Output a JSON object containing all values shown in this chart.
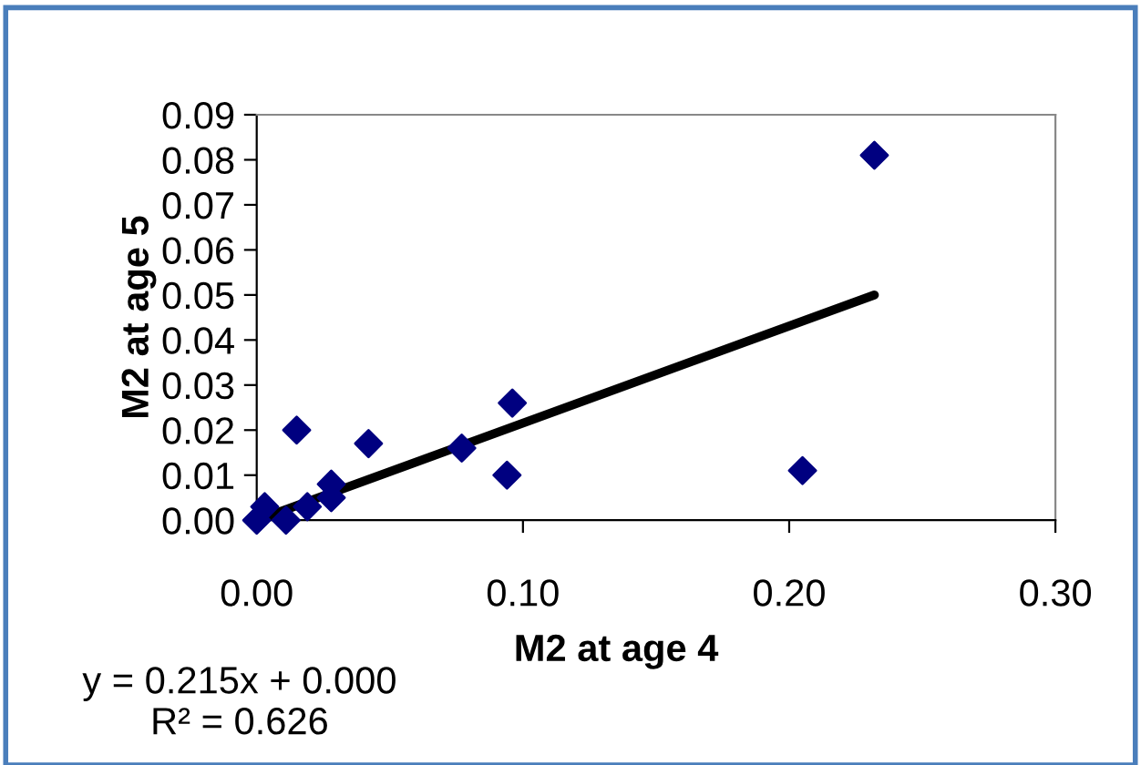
{
  "chart_data": {
    "type": "scatter",
    "xlabel": "M2 at age 4",
    "ylabel": "M2 at age 5",
    "xlim": [
      0,
      0.3
    ],
    "xticks": [
      {
        "value": 0,
        "label": "0.00"
      },
      {
        "value": 0.1,
        "label": "0.10"
      },
      {
        "value": 0.2,
        "label": "0.20"
      },
      {
        "value": 0.3,
        "label": "0.30"
      }
    ],
    "ylim": [
      0,
      0.09
    ],
    "yticks": [
      {
        "value": 0,
        "label": "0.00"
      },
      {
        "value": 0.01,
        "label": "0.01"
      },
      {
        "value": 0.02,
        "label": "0.02"
      },
      {
        "value": 0.03,
        "label": "0.03"
      },
      {
        "value": 0.04,
        "label": "0.04"
      },
      {
        "value": 0.05,
        "label": "0.05"
      },
      {
        "value": 0.06,
        "label": "0.06"
      },
      {
        "value": 0.07,
        "label": "0.07"
      },
      {
        "value": 0.08,
        "label": "0.08"
      },
      {
        "value": 0.09,
        "label": "0.09"
      }
    ],
    "grid": false,
    "legend": false,
    "series": [
      {
        "marker": "diamond",
        "color": "#000080",
        "x": [
          0.0,
          0.003,
          0.008,
          0.011,
          0.019,
          0.015,
          0.028,
          0.028,
          0.042,
          0.077,
          0.094,
          0.096,
          0.205,
          0.232
        ],
        "values": [
          0.0,
          0.003,
          null,
          0.0,
          0.003,
          0.02,
          0.008,
          0.005,
          0.017,
          0.016,
          0.01,
          0.026,
          0.011,
          0.081
        ]
      },
      {
        "type": "line",
        "color": "#000000",
        "x": [
          0.0,
          0.232
        ],
        "values": [
          0.0,
          0.05
        ]
      }
    ],
    "annotations": [
      "y = 0.215x + 0.000\nR² = 0.626"
    ]
  }
}
